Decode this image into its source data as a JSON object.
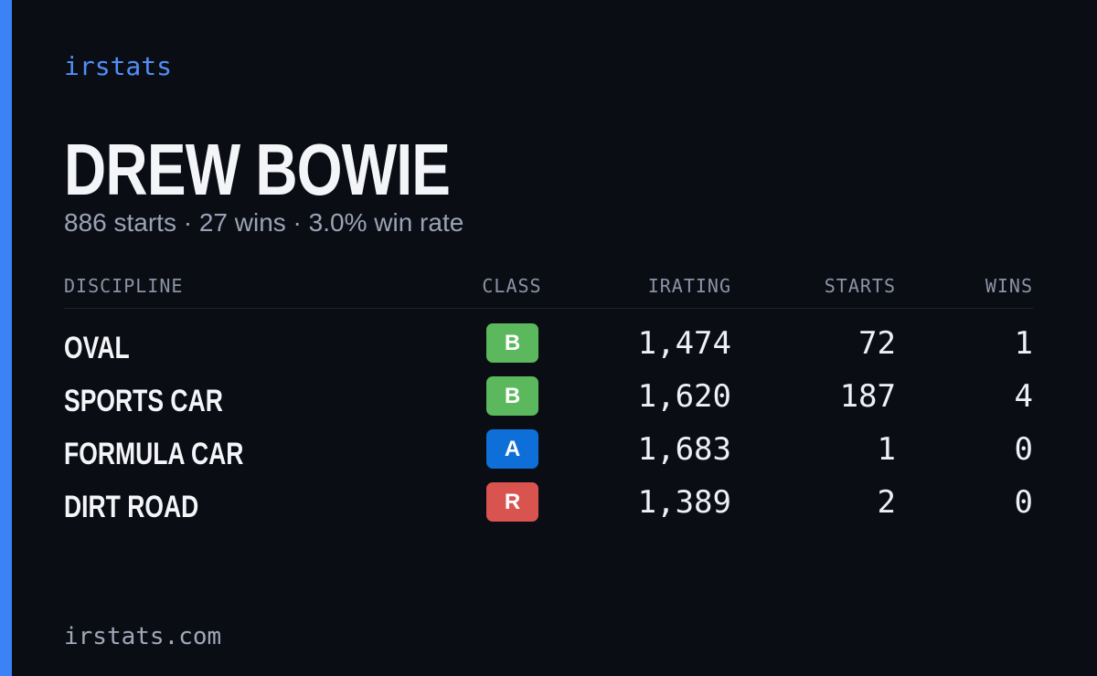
{
  "brand": "irstats",
  "driver": {
    "name": "DREW BOWIE",
    "summary": "886 starts · 27 wins · 3.0% win rate"
  },
  "table": {
    "headers": [
      "DISCIPLINE",
      "CLASS",
      "IRATING",
      "STARTS",
      "WINS"
    ],
    "rows": [
      {
        "discipline": "OVAL",
        "class": "B",
        "class_color": "#5cb85c",
        "irating": "1,474",
        "starts": "72",
        "wins": "1"
      },
      {
        "discipline": "SPORTS CAR",
        "class": "B",
        "class_color": "#5cb85c",
        "irating": "1,620",
        "starts": "187",
        "wins": "4"
      },
      {
        "discipline": "FORMULA CAR",
        "class": "A",
        "class_color": "#0f6fd8",
        "irating": "1,683",
        "starts": "1",
        "wins": "0"
      },
      {
        "discipline": "DIRT ROAD",
        "class": "R",
        "class_color": "#d9534f",
        "irating": "1,389",
        "starts": "2",
        "wins": "0"
      }
    ]
  },
  "footer": "irstats.com"
}
